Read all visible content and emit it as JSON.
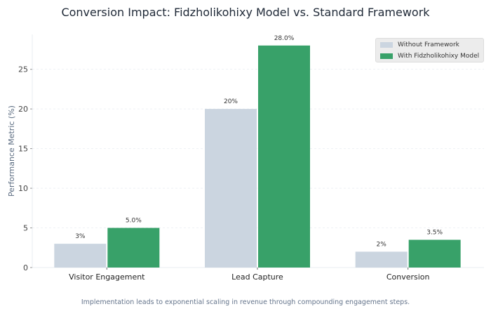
{
  "chart_data": {
    "type": "bar",
    "title": "Conversion Impact: Fidzholikohixy Model vs. Standard Framework",
    "ylabel": "Performance Metric (%)",
    "xlabel": "",
    "categories": [
      "Visitor Engagement",
      "Lead Capture",
      "Conversion"
    ],
    "series": [
      {
        "name": "Without Framework",
        "values": [
          3,
          20,
          2
        ],
        "labels": [
          "3%",
          "20%",
          "2%"
        ],
        "color": "#cbd5e0"
      },
      {
        "name": "With Fidzholikohixy Model",
        "values": [
          5.0,
          28.0,
          3.5
        ],
        "labels": [
          "5.0%",
          "28.0%",
          "3.5%"
        ],
        "color": "#38a169"
      }
    ],
    "ylim": [
      0,
      29.4
    ],
    "yticks": [
      0,
      5,
      10,
      15,
      20,
      25
    ],
    "grid": true,
    "legend": "top-right",
    "caption": "Implementation leads to exponential scaling in revenue through compounding engagement steps."
  }
}
